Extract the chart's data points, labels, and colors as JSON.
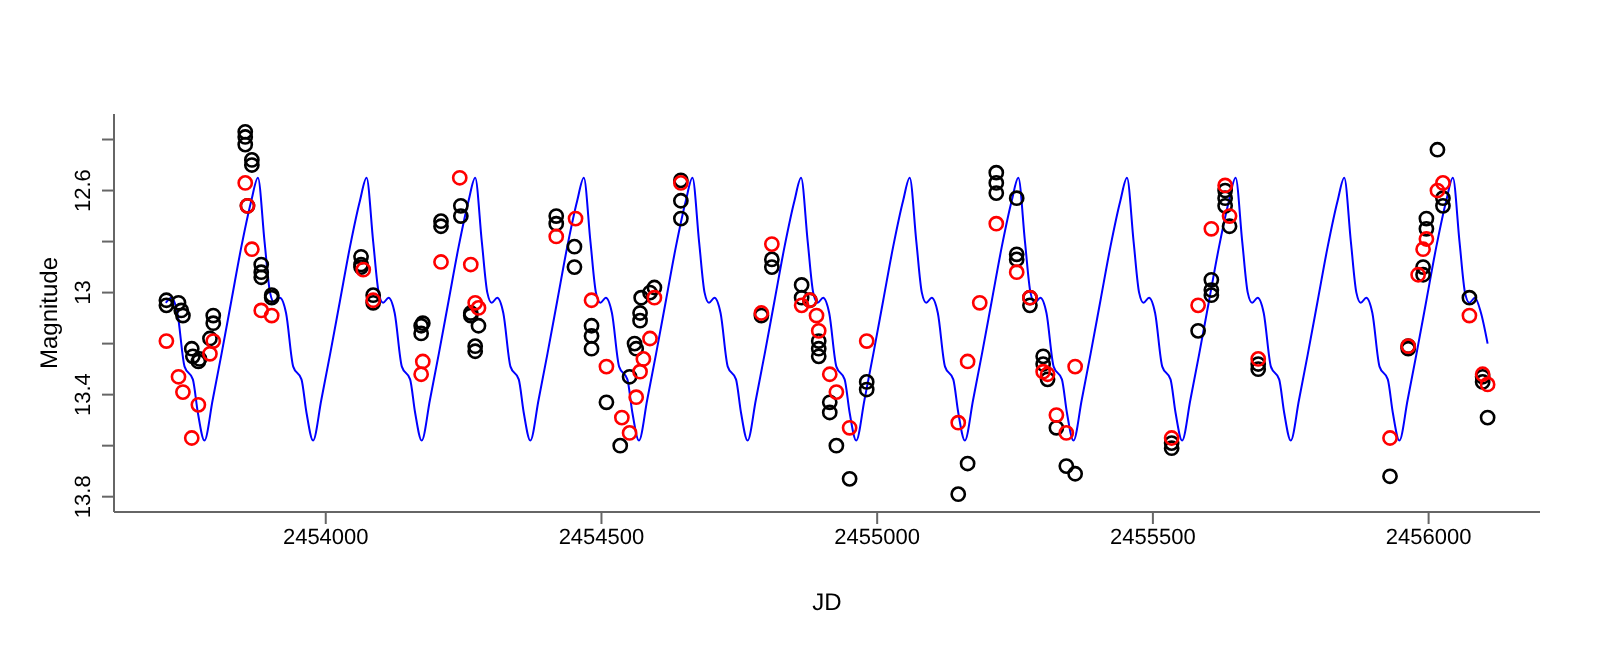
{
  "chart_data": {
    "type": "scatter",
    "xlabel": "JD",
    "ylabel": "Magnitude",
    "xlim": [
      2453616,
      2456202
    ],
    "ylim": [
      13.86,
      12.3
    ],
    "xticks": [
      2454000,
      2454500,
      2455000,
      2455500,
      2456000
    ],
    "yticks": [
      {
        "value": 12.4,
        "label": null
      },
      12.6,
      {
        "value": 12.8,
        "label": null
      },
      13.0,
      {
        "value": 13.2,
        "label": null
      },
      13.4,
      {
        "value": 13.6,
        "label": null
      },
      13.8
    ],
    "grid": false,
    "series": [
      {
        "type": "line",
        "color": "#0000ff",
        "marker": "none",
        "line_style": "solid",
        "x": [
          2453710,
          2453720,
          2453731,
          2453744,
          2453759,
          2453768,
          2453780,
          2453795,
          2453811,
          2453829,
          2453847,
          2453865,
          2453877,
          2453889,
          2453899,
          2453907,
          2453917,
          2453928,
          2453941,
          2453956,
          2453965,
          2453977,
          2453992,
          2454008,
          2454026,
          2454044,
          2454062,
          2454074,
          2454086,
          2454096,
          2454104,
          2454114,
          2454125,
          2454138,
          2454153,
          2454162,
          2454174,
          2454189,
          2454205,
          2454223,
          2454241,
          2454259,
          2454271,
          2454283,
          2454293,
          2454301,
          2454311,
          2454322,
          2454335,
          2454350,
          2454359,
          2454371,
          2454386,
          2454402,
          2454420,
          2454438,
          2454456,
          2454468,
          2454480,
          2454490,
          2454498,
          2454508,
          2454519,
          2454532,
          2454547,
          2454556,
          2454568,
          2454583,
          2454599,
          2454617,
          2454635,
          2454653,
          2454665,
          2454677,
          2454687,
          2454695,
          2454705,
          2454716,
          2454729,
          2454744,
          2454753,
          2454765,
          2454780,
          2454796,
          2454814,
          2454832,
          2454850,
          2454862,
          2454874,
          2454884,
          2454892,
          2454902,
          2454913,
          2454926,
          2454941,
          2454950,
          2454962,
          2454977,
          2454993,
          2455011,
          2455029,
          2455047,
          2455059,
          2455071,
          2455081,
          2455089,
          2455099,
          2455110,
          2455123,
          2455138,
          2455147,
          2455159,
          2455174,
          2455190,
          2455208,
          2455226,
          2455244,
          2455256,
          2455268,
          2455278,
          2455286,
          2455296,
          2455307,
          2455320,
          2455335,
          2455344,
          2455356,
          2455371,
          2455387,
          2455405,
          2455423,
          2455441,
          2455453,
          2455465,
          2455475,
          2455483,
          2455493,
          2455504,
          2455517,
          2455532,
          2455541,
          2455553,
          2455568,
          2455584,
          2455602,
          2455620,
          2455638,
          2455650,
          2455662,
          2455672,
          2455680,
          2455690,
          2455701,
          2455714,
          2455729,
          2455738,
          2455750,
          2455765,
          2455781,
          2455799,
          2455817,
          2455835,
          2455847,
          2455859,
          2455869,
          2455877,
          2455887,
          2455898,
          2455911,
          2455926,
          2455935,
          2455947,
          2455962,
          2455978,
          2455996,
          2456014,
          2456032,
          2456044,
          2456056,
          2456066,
          2456074,
          2456084,
          2456095,
          2456107
        ],
        "values": [
          13.04,
          13.02,
          13.08,
          13.29,
          13.34,
          13.47,
          13.58,
          13.42,
          13.24,
          13.03,
          12.82,
          12.64,
          12.55,
          12.8,
          13.0,
          13.04,
          13.02,
          13.08,
          13.29,
          13.34,
          13.47,
          13.58,
          13.42,
          13.24,
          13.03,
          12.82,
          12.64,
          12.55,
          12.8,
          13.0,
          13.04,
          13.02,
          13.08,
          13.29,
          13.34,
          13.47,
          13.58,
          13.42,
          13.24,
          13.03,
          12.82,
          12.64,
          12.55,
          12.8,
          13.0,
          13.04,
          13.02,
          13.08,
          13.29,
          13.34,
          13.47,
          13.58,
          13.42,
          13.24,
          13.03,
          12.82,
          12.64,
          12.55,
          12.8,
          13.0,
          13.04,
          13.02,
          13.08,
          13.29,
          13.34,
          13.47,
          13.58,
          13.42,
          13.24,
          13.03,
          12.82,
          12.64,
          12.55,
          12.8,
          13.0,
          13.04,
          13.02,
          13.08,
          13.29,
          13.34,
          13.47,
          13.58,
          13.42,
          13.24,
          13.03,
          12.82,
          12.64,
          12.55,
          12.8,
          13.0,
          13.04,
          13.02,
          13.08,
          13.29,
          13.34,
          13.47,
          13.58,
          13.42,
          13.24,
          13.03,
          12.82,
          12.64,
          12.55,
          12.8,
          13.0,
          13.04,
          13.02,
          13.08,
          13.29,
          13.34,
          13.47,
          13.58,
          13.42,
          13.24,
          13.03,
          12.82,
          12.64,
          12.55,
          12.8,
          13.0,
          13.04,
          13.02,
          13.08,
          13.29,
          13.34,
          13.47,
          13.58,
          13.42,
          13.24,
          13.03,
          12.82,
          12.64,
          12.55,
          12.8,
          13.0,
          13.04,
          13.02,
          13.08,
          13.29,
          13.34,
          13.47,
          13.58,
          13.42,
          13.24,
          13.03,
          12.82,
          12.64,
          12.55,
          12.8,
          13.0,
          13.04,
          13.02,
          13.08,
          13.29,
          13.34,
          13.47,
          13.58,
          13.42,
          13.24,
          13.03,
          12.82,
          12.64,
          12.55,
          12.8,
          13.0,
          13.04,
          13.02,
          13.08,
          13.29,
          13.34,
          13.47,
          13.58,
          13.42,
          13.24,
          13.03,
          12.82,
          12.64,
          12.55,
          12.8,
          13.0,
          13.04,
          13.02,
          13.08,
          13.2
        ]
      },
      {
        "color": "#000000",
        "marker": "circle",
        "x": [
          2453711,
          2453711,
          2453733,
          2453738,
          2453741,
          2453757,
          2453759,
          2453769,
          2453771,
          2453790,
          2453796,
          2453796,
          2453854,
          2453854,
          2453854,
          2453866,
          2453866,
          2453858,
          2453883,
          2453883,
          2453883,
          2453902,
          2453902,
          2454064,
          2454064,
          2454064,
          2454086,
          2454086,
          2454173,
          2454176,
          2454173,
          2454209,
          2454209,
          2454245,
          2454245,
          2454263,
          2454263,
          2454277,
          2454271,
          2454271,
          2454418,
          2454418,
          2454451,
          2454451,
          2454482,
          2454482,
          2454482,
          2454509,
          2454534,
          2454551,
          2454560,
          2454563,
          2454570,
          2454570,
          2454572,
          2454588,
          2454596,
          2454644,
          2454644,
          2454644,
          2454790,
          2454809,
          2454809,
          2454863,
          2454863,
          2454878,
          2454894,
          2454894,
          2454894,
          2454914,
          2454914,
          2454926,
          2454950,
          2454981,
          2454981,
          2455147,
          2455164,
          2455216,
          2455216,
          2455216,
          2455253,
          2455253,
          2455253,
          2455277,
          2455277,
          2455301,
          2455301,
          2455309,
          2455325,
          2455343,
          2455359,
          2455534,
          2455534,
          2455582,
          2455606,
          2455606,
          2455606,
          2455631,
          2455631,
          2455631,
          2455639,
          2455691,
          2455691,
          2455930,
          2455963,
          2455963,
          2455990,
          2455990,
          2455996,
          2455996,
          2456016,
          2456026,
          2456026,
          2456074,
          2456098,
          2456098,
          2456107
        ],
        "values": [
          13.03,
          13.05,
          13.04,
          13.07,
          13.09,
          13.22,
          13.25,
          13.27,
          13.26,
          13.18,
          13.09,
          13.12,
          12.37,
          12.39,
          12.42,
          12.48,
          12.5,
          12.66,
          12.89,
          12.92,
          12.94,
          13.01,
          13.02,
          12.86,
          12.89,
          12.9,
          13.01,
          13.04,
          13.13,
          13.12,
          13.16,
          12.72,
          12.74,
          12.66,
          12.7,
          13.08,
          13.09,
          13.13,
          13.21,
          13.23,
          12.7,
          12.73,
          12.82,
          12.9,
          13.13,
          13.17,
          13.22,
          13.43,
          13.6,
          13.33,
          13.2,
          13.22,
          13.08,
          13.11,
          13.02,
          13.0,
          12.98,
          12.56,
          12.64,
          12.71,
          13.09,
          12.87,
          12.9,
          12.97,
          13.02,
          13.03,
          13.19,
          13.22,
          13.25,
          13.43,
          13.47,
          13.6,
          13.73,
          13.35,
          13.38,
          13.79,
          13.67,
          12.53,
          12.57,
          12.61,
          12.63,
          12.85,
          12.87,
          13.02,
          13.05,
          13.25,
          13.28,
          13.34,
          13.53,
          13.68,
          13.71,
          13.59,
          13.61,
          13.15,
          12.95,
          12.99,
          13.01,
          12.6,
          12.63,
          12.66,
          12.74,
          13.28,
          13.3,
          13.72,
          13.21,
          13.22,
          12.9,
          12.93,
          12.71,
          12.75,
          12.44,
          12.63,
          12.66,
          13.02,
          13.33,
          13.35,
          13.49
        ]
      },
      {
        "color": "#ff0000",
        "marker": "circle",
        "x": [
          2453711,
          2453733,
          2453741,
          2453757,
          2453769,
          2453790,
          2453796,
          2453854,
          2453858,
          2453866,
          2453883,
          2453902,
          2454068,
          2454086,
          2454173,
          2454176,
          2454209,
          2454243,
          2454263,
          2454271,
          2454277,
          2454418,
          2454453,
          2454482,
          2454509,
          2454537,
          2454551,
          2454563,
          2454570,
          2454576,
          2454588,
          2454596,
          2454644,
          2454790,
          2454809,
          2454863,
          2454878,
          2454890,
          2454894,
          2454914,
          2454926,
          2454950,
          2454981,
          2455147,
          2455164,
          2455216,
          2455253,
          2455186,
          2455277,
          2455301,
          2455309,
          2455325,
          2455343,
          2455359,
          2455534,
          2455582,
          2455606,
          2455631,
          2455639,
          2455691,
          2455930,
          2455963,
          2455981,
          2455990,
          2455996,
          2456016,
          2456026,
          2456074,
          2456098,
          2456107
        ],
        "values": [
          13.19,
          13.33,
          13.39,
          13.57,
          13.44,
          13.24,
          13.19,
          12.57,
          12.66,
          12.83,
          13.07,
          13.09,
          12.91,
          13.03,
          13.32,
          13.27,
          12.88,
          12.55,
          12.89,
          13.04,
          13.06,
          12.78,
          12.71,
          13.03,
          13.29,
          13.49,
          13.55,
          13.41,
          13.31,
          13.26,
          13.18,
          13.02,
          12.57,
          13.08,
          12.81,
          13.05,
          13.03,
          13.09,
          13.15,
          13.32,
          13.39,
          13.53,
          13.19,
          13.51,
          13.27,
          12.73,
          12.92,
          13.04,
          13.02,
          13.31,
          13.32,
          13.48,
          13.55,
          13.29,
          13.57,
          13.05,
          12.75,
          12.58,
          12.7,
          13.26,
          13.57,
          13.21,
          12.93,
          12.83,
          12.79,
          12.6,
          12.57,
          13.09,
          13.32,
          13.36
        ]
      }
    ]
  }
}
